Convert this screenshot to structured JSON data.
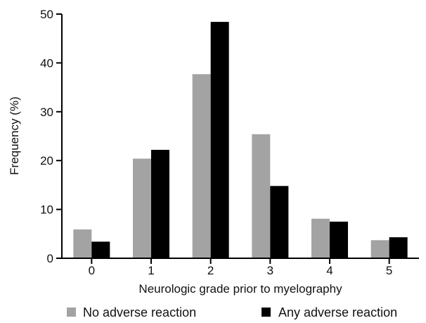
{
  "chart_data": {
    "type": "bar",
    "title": "",
    "xlabel": "Neurologic grade prior to myelography",
    "ylabel": "Frequency (%)",
    "categories": [
      "0",
      "1",
      "2",
      "3",
      "4",
      "5"
    ],
    "ylim": [
      0,
      50
    ],
    "yticks": [
      "0",
      "10",
      "20",
      "30",
      "40",
      "50"
    ],
    "grid": false,
    "legend_position": "bottom",
    "series": [
      {
        "name": "No adverse reaction",
        "color": "#a3a3a3",
        "values": [
          5.9,
          20.4,
          37.7,
          25.4,
          8.1,
          3.7
        ]
      },
      {
        "name": "Any adverse reaction",
        "color": "#000000",
        "values": [
          3.4,
          22.2,
          48.4,
          14.8,
          7.5,
          4.3
        ]
      }
    ]
  }
}
